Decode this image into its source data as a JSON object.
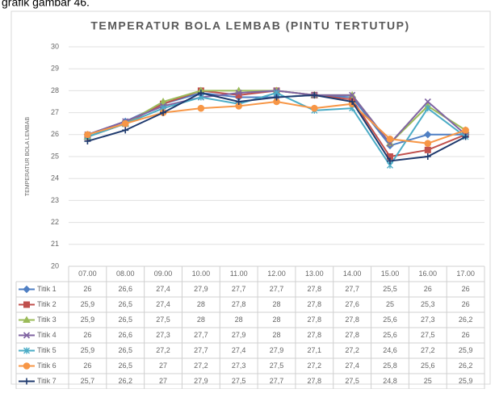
{
  "caption": "grafik gambar 46.",
  "chart_data": {
    "type": "line",
    "title": "TEMPERATUR BOLA LEMBAB (PINTU TERTUTUP)",
    "y_label": "TEMPERATUR BOLA LEMBAB",
    "categories": [
      "07.00",
      "08.00",
      "09.00",
      "10.00",
      "11.00",
      "12.00",
      "13.00",
      "14.00",
      "15.00",
      "16.00",
      "17.00"
    ],
    "ylim": [
      20,
      30
    ],
    "yticks": [
      20,
      21,
      22,
      23,
      24,
      25,
      26,
      27,
      28,
      29,
      30
    ],
    "grid": true,
    "series": [
      {
        "name": "Titik 1",
        "color": "#4f7fc3",
        "values": [
          26,
          26.6,
          27.4,
          27.9,
          27.7,
          27.7,
          27.8,
          27.7,
          25.5,
          26,
          26
        ],
        "value_labels": [
          "26",
          "26,6",
          "27,4",
          "27,9",
          "27,7",
          "27,7",
          "27,8",
          "27,7",
          "25,5",
          "26",
          "26"
        ]
      },
      {
        "name": "Titik 2",
        "color": "#c0504d",
        "values": [
          25.9,
          26.5,
          27.4,
          28,
          27.8,
          28,
          27.8,
          27.6,
          25,
          25.3,
          26
        ],
        "value_labels": [
          "25,9",
          "26,5",
          "27,4",
          "28",
          "27,8",
          "28",
          "27,8",
          "27,6",
          "25",
          "25,3",
          "26"
        ]
      },
      {
        "name": "Titik 3",
        "color": "#9bbb59",
        "values": [
          25.9,
          26.5,
          27.5,
          28,
          28,
          28,
          27.8,
          27.8,
          25.6,
          27.3,
          26.2
        ],
        "value_labels": [
          "25,9",
          "26,5",
          "27,5",
          "28",
          "28",
          "28",
          "27,8",
          "27,8",
          "25,6",
          "27,3",
          "26,2"
        ]
      },
      {
        "name": "Titik 4",
        "color": "#8064a2",
        "values": [
          26,
          26.6,
          27.3,
          27.7,
          27.9,
          28,
          27.8,
          27.8,
          25.6,
          27.5,
          26
        ],
        "value_labels": [
          "26",
          "26,6",
          "27,3",
          "27,7",
          "27,9",
          "28",
          "27,8",
          "27,8",
          "25,6",
          "27,5",
          "26"
        ]
      },
      {
        "name": "Titik 5",
        "color": "#4bacc6",
        "values": [
          25.9,
          26.5,
          27.2,
          27.7,
          27.4,
          27.9,
          27.1,
          27.2,
          24.6,
          27.2,
          25.9
        ],
        "value_labels": [
          "25,9",
          "26,5",
          "27,2",
          "27,7",
          "27,4",
          "27,9",
          "27,1",
          "27,2",
          "24,6",
          "27,2",
          "25,9"
        ]
      },
      {
        "name": "Titik 6",
        "color": "#f79646",
        "values": [
          26,
          26.5,
          27,
          27.2,
          27.3,
          27.5,
          27.2,
          27.4,
          25.8,
          25.6,
          26.2
        ],
        "value_labels": [
          "26",
          "26,5",
          "27",
          "27,2",
          "27,3",
          "27,5",
          "27,2",
          "27,4",
          "25,8",
          "25,6",
          "26,2"
        ]
      },
      {
        "name": "Titik 7",
        "color": "#1f3a6e",
        "values": [
          25.7,
          26.2,
          27,
          27.9,
          27.5,
          27.7,
          27.8,
          27.5,
          24.8,
          25,
          25.9
        ],
        "value_labels": [
          "25,7",
          "26,2",
          "27",
          "27,9",
          "27,5",
          "27,7",
          "27,8",
          "27,5",
          "24,8",
          "25",
          "25,9"
        ]
      }
    ]
  }
}
